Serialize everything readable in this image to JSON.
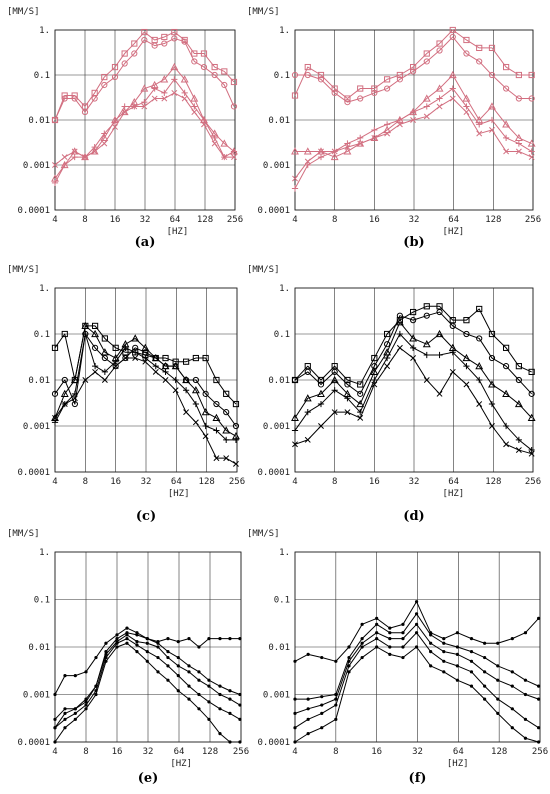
{
  "figure": {
    "x_unit": "[HZ]",
    "y_unit": "[MM/S]",
    "x_ticks": [
      "4",
      "8",
      "16",
      "32",
      "64",
      "128",
      "256"
    ],
    "y_ticks": [
      "1.",
      "0.1",
      "0.01",
      "0.001",
      "0.0001"
    ]
  },
  "chart_data": [
    {
      "panel": "(a)",
      "type": "line",
      "x_scale": "log2",
      "y_scale": "log10",
      "xlim": [
        4,
        256
      ],
      "ylim": [
        0.0001,
        1
      ],
      "grid": true,
      "color": "#d26f80",
      "x": [
        4,
        5,
        6.3,
        8,
        10,
        12.5,
        16,
        20,
        25,
        31.5,
        40,
        50,
        63,
        80,
        100,
        125,
        160,
        200,
        250
      ],
      "series": [
        {
          "marker": "square",
          "values": [
            0.01,
            0.035,
            0.035,
            0.02,
            0.04,
            0.09,
            0.15,
            0.3,
            0.5,
            0.9,
            0.6,
            0.7,
            0.9,
            0.6,
            0.3,
            0.3,
            0.15,
            0.12,
            0.07
          ]
        },
        {
          "marker": "circle",
          "values": [
            0.01,
            0.03,
            0.03,
            0.015,
            0.03,
            0.06,
            0.09,
            0.18,
            0.3,
            0.6,
            0.45,
            0.5,
            0.65,
            0.55,
            0.2,
            0.15,
            0.1,
            0.06,
            0.02
          ]
        },
        {
          "marker": "triangle",
          "values": [
            0.0005,
            0.001,
            0.002,
            0.0015,
            0.002,
            0.004,
            0.01,
            0.015,
            0.025,
            0.05,
            0.06,
            0.08,
            0.15,
            0.08,
            0.03,
            0.01,
            0.005,
            0.003,
            0.002
          ]
        },
        {
          "marker": "plus",
          "values": [
            0.0004,
            0.001,
            0.0015,
            0.0015,
            0.0025,
            0.005,
            0.009,
            0.02,
            0.02,
            0.025,
            0.05,
            0.04,
            0.08,
            0.04,
            0.02,
            0.01,
            0.004,
            0.0015,
            0.002
          ]
        },
        {
          "marker": "x",
          "values": [
            0.001,
            0.0015,
            0.002,
            0.0015,
            0.002,
            0.003,
            0.007,
            0.015,
            0.02,
            0.02,
            0.03,
            0.03,
            0.04,
            0.03,
            0.015,
            0.008,
            0.003,
            0.0015,
            0.0015
          ]
        }
      ]
    },
    {
      "panel": "(b)",
      "type": "line",
      "x_scale": "log2",
      "y_scale": "log10",
      "xlim": [
        4,
        256
      ],
      "ylim": [
        0.0001,
        1
      ],
      "grid": true,
      "color": "#d26f80",
      "x": [
        4,
        5,
        6.3,
        8,
        10,
        12.5,
        16,
        20,
        25,
        31.5,
        40,
        50,
        63,
        80,
        100,
        125,
        160,
        200,
        250
      ],
      "series": [
        {
          "marker": "square",
          "values": [
            0.035,
            0.15,
            0.1,
            0.05,
            0.03,
            0.05,
            0.05,
            0.08,
            0.1,
            0.15,
            0.3,
            0.5,
            1.0,
            0.6,
            0.4,
            0.4,
            0.15,
            0.1,
            0.1
          ]
        },
        {
          "marker": "circle",
          "values": [
            0.1,
            0.1,
            0.08,
            0.04,
            0.025,
            0.03,
            0.04,
            0.05,
            0.08,
            0.12,
            0.2,
            0.35,
            0.7,
            0.3,
            0.2,
            0.1,
            0.05,
            0.03,
            0.03
          ]
        },
        {
          "marker": "triangle",
          "values": [
            0.002,
            0.002,
            0.002,
            0.0015,
            0.002,
            0.003,
            0.004,
            0.006,
            0.01,
            0.015,
            0.03,
            0.05,
            0.1,
            0.03,
            0.01,
            0.02,
            0.008,
            0.004,
            0.003
          ]
        },
        {
          "marker": "plus",
          "values": [
            0.0003,
            0.001,
            0.0015,
            0.002,
            0.003,
            0.004,
            0.006,
            0.008,
            0.01,
            0.015,
            0.02,
            0.03,
            0.05,
            0.02,
            0.008,
            0.01,
            0.004,
            0.003,
            0.002
          ]
        },
        {
          "marker": "x",
          "values": [
            0.0005,
            0.0012,
            0.002,
            0.002,
            0.0025,
            0.003,
            0.004,
            0.005,
            0.008,
            0.01,
            0.012,
            0.02,
            0.03,
            0.015,
            0.005,
            0.006,
            0.002,
            0.002,
            0.0015
          ]
        }
      ]
    },
    {
      "panel": "(c)",
      "type": "line",
      "x_scale": "log2",
      "y_scale": "log10",
      "xlim": [
        4,
        256
      ],
      "ylim": [
        0.0001,
        1
      ],
      "grid": true,
      "color": "#000000",
      "x": [
        4,
        5,
        6.3,
        8,
        10,
        12.5,
        16,
        20,
        25,
        31.5,
        40,
        50,
        63,
        80,
        100,
        125,
        160,
        200,
        250
      ],
      "series": [
        {
          "marker": "square",
          "values": [
            0.05,
            0.1,
            0.01,
            0.15,
            0.15,
            0.08,
            0.05,
            0.04,
            0.04,
            0.035,
            0.03,
            0.03,
            0.025,
            0.025,
            0.03,
            0.03,
            0.01,
            0.005,
            0.003
          ]
        },
        {
          "marker": "circle",
          "values": [
            0.005,
            0.01,
            0.003,
            0.1,
            0.05,
            0.03,
            0.02,
            0.03,
            0.05,
            0.04,
            0.03,
            0.02,
            0.02,
            0.01,
            0.01,
            0.005,
            0.003,
            0.002,
            0.001
          ]
        },
        {
          "marker": "triangle",
          "values": [
            0.0015,
            0.005,
            0.01,
            0.15,
            0.1,
            0.04,
            0.03,
            0.06,
            0.08,
            0.05,
            0.03,
            0.02,
            0.02,
            0.01,
            0.006,
            0.002,
            0.0015,
            0.0008,
            0.0006
          ]
        },
        {
          "marker": "plus",
          "values": [
            0.0012,
            0.003,
            0.005,
            0.1,
            0.02,
            0.015,
            0.025,
            0.05,
            0.04,
            0.03,
            0.02,
            0.015,
            0.01,
            0.006,
            0.003,
            0.001,
            0.0008,
            0.0005,
            0.0005
          ]
        },
        {
          "marker": "x",
          "values": [
            0.0015,
            0.003,
            0.004,
            0.01,
            0.015,
            0.01,
            0.02,
            0.03,
            0.03,
            0.025,
            0.015,
            0.01,
            0.006,
            0.002,
            0.0012,
            0.0006,
            0.0002,
            0.0002,
            0.00015
          ]
        }
      ]
    },
    {
      "panel": "(d)",
      "type": "line",
      "x_scale": "log2",
      "y_scale": "log10",
      "xlim": [
        4,
        256
      ],
      "ylim": [
        0.0001,
        1
      ],
      "grid": true,
      "color": "#000000",
      "x": [
        4,
        5,
        6.3,
        8,
        10,
        12.5,
        16,
        20,
        25,
        31.5,
        40,
        50,
        63,
        80,
        100,
        125,
        160,
        200,
        250
      ],
      "series": [
        {
          "marker": "square",
          "values": [
            0.01,
            0.02,
            0.01,
            0.02,
            0.01,
            0.008,
            0.03,
            0.1,
            0.2,
            0.3,
            0.4,
            0.4,
            0.2,
            0.2,
            0.35,
            0.1,
            0.05,
            0.02,
            0.015
          ]
        },
        {
          "marker": "circle",
          "values": [
            0.01,
            0.015,
            0.008,
            0.015,
            0.008,
            0.005,
            0.02,
            0.06,
            0.25,
            0.2,
            0.25,
            0.3,
            0.15,
            0.1,
            0.08,
            0.03,
            0.02,
            0.01,
            0.005
          ]
        },
        {
          "marker": "triangle",
          "values": [
            0.0015,
            0.004,
            0.005,
            0.01,
            0.005,
            0.003,
            0.015,
            0.04,
            0.18,
            0.08,
            0.06,
            0.1,
            0.05,
            0.03,
            0.02,
            0.008,
            0.005,
            0.003,
            0.0015
          ]
        },
        {
          "marker": "plus",
          "values": [
            0.0008,
            0.002,
            0.003,
            0.006,
            0.004,
            0.002,
            0.01,
            0.03,
            0.1,
            0.05,
            0.035,
            0.035,
            0.04,
            0.02,
            0.01,
            0.003,
            0.001,
            0.0005,
            0.0003
          ]
        },
        {
          "marker": "x",
          "values": [
            0.0004,
            0.0005,
            0.001,
            0.002,
            0.002,
            0.0015,
            0.008,
            0.02,
            0.05,
            0.03,
            0.01,
            0.005,
            0.015,
            0.008,
            0.003,
            0.001,
            0.0004,
            0.0003,
            0.00025
          ]
        }
      ]
    },
    {
      "panel": "(e)",
      "type": "line",
      "x_scale": "log2",
      "y_scale": "log10",
      "xlim": [
        4,
        256
      ],
      "ylim": [
        0.0001,
        1
      ],
      "grid": true,
      "color": "#000000",
      "x": [
        4,
        5,
        6.3,
        8,
        10,
        12.5,
        16,
        20,
        25,
        31.5,
        40,
        50,
        63,
        80,
        100,
        125,
        160,
        200,
        250
      ],
      "series": [
        {
          "marker": "dot",
          "values": [
            0.001,
            0.0025,
            0.0025,
            0.003,
            0.006,
            0.012,
            0.018,
            0.025,
            0.02,
            0.015,
            0.013,
            0.015,
            0.013,
            0.015,
            0.01,
            0.015,
            0.015,
            0.015,
            0.015
          ]
        },
        {
          "marker": "dot",
          "values": [
            0.0003,
            0.0005,
            0.0005,
            0.0008,
            0.0015,
            0.008,
            0.015,
            0.02,
            0.018,
            0.015,
            0.012,
            0.008,
            0.006,
            0.004,
            0.003,
            0.002,
            0.0015,
            0.0012,
            0.001
          ]
        },
        {
          "marker": "dot",
          "values": [
            0.0002,
            0.0004,
            0.0005,
            0.0007,
            0.0015,
            0.007,
            0.013,
            0.018,
            0.013,
            0.012,
            0.01,
            0.006,
            0.004,
            0.003,
            0.002,
            0.0015,
            0.001,
            0.0008,
            0.0006
          ]
        },
        {
          "marker": "dot",
          "values": [
            0.0002,
            0.0003,
            0.0004,
            0.0006,
            0.0012,
            0.006,
            0.012,
            0.015,
            0.011,
            0.008,
            0.006,
            0.004,
            0.0025,
            0.0015,
            0.001,
            0.0007,
            0.0005,
            0.0004,
            0.0003
          ]
        },
        {
          "marker": "dot",
          "values": [
            0.0001,
            0.0002,
            0.0003,
            0.0005,
            0.001,
            0.005,
            0.01,
            0.012,
            0.008,
            0.005,
            0.003,
            0.002,
            0.0012,
            0.0008,
            0.0005,
            0.0003,
            0.00015,
            0.0001,
            0.0001
          ]
        }
      ]
    },
    {
      "panel": "(f)",
      "type": "line",
      "x_scale": "log2",
      "y_scale": "log10",
      "xlim": [
        4,
        256
      ],
      "ylim": [
        0.0001,
        1
      ],
      "grid": true,
      "color": "#000000",
      "x": [
        4,
        5,
        6.3,
        8,
        10,
        12.5,
        16,
        20,
        25,
        31.5,
        40,
        50,
        63,
        80,
        100,
        125,
        160,
        200,
        250
      ],
      "series": [
        {
          "marker": "dot",
          "values": [
            0.005,
            0.007,
            0.006,
            0.005,
            0.01,
            0.03,
            0.04,
            0.025,
            0.03,
            0.09,
            0.02,
            0.015,
            0.02,
            0.015,
            0.012,
            0.012,
            0.015,
            0.02,
            0.04
          ]
        },
        {
          "marker": "dot",
          "values": [
            0.0008,
            0.0008,
            0.0009,
            0.001,
            0.006,
            0.015,
            0.03,
            0.02,
            0.02,
            0.05,
            0.018,
            0.012,
            0.01,
            0.008,
            0.006,
            0.004,
            0.003,
            0.002,
            0.0015
          ]
        },
        {
          "marker": "dot",
          "values": [
            0.0004,
            0.0005,
            0.0006,
            0.0008,
            0.005,
            0.012,
            0.02,
            0.015,
            0.015,
            0.03,
            0.012,
            0.008,
            0.007,
            0.005,
            0.003,
            0.002,
            0.0015,
            0.001,
            0.0008
          ]
        },
        {
          "marker": "dot",
          "values": [
            0.0002,
            0.0003,
            0.0004,
            0.0006,
            0.004,
            0.01,
            0.015,
            0.01,
            0.01,
            0.02,
            0.008,
            0.005,
            0.004,
            0.003,
            0.0015,
            0.0008,
            0.0005,
            0.0003,
            0.0002
          ]
        },
        {
          "marker": "dot",
          "values": [
            0.0001,
            0.00015,
            0.0002,
            0.0003,
            0.003,
            0.006,
            0.01,
            0.007,
            0.006,
            0.01,
            0.004,
            0.003,
            0.002,
            0.0015,
            0.0008,
            0.0004,
            0.0002,
            0.00012,
            0.0001
          ]
        }
      ]
    }
  ]
}
